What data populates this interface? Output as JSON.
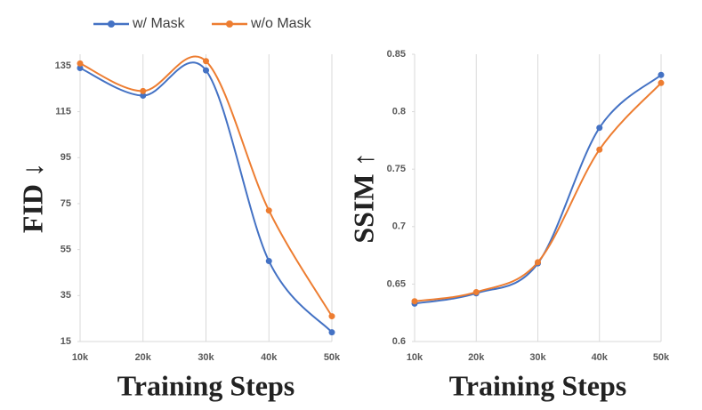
{
  "chart_data": [
    {
      "type": "line",
      "ylabel": "FID ↓",
      "xlabel": "Training Steps",
      "categories": [
        "10k",
        "20k",
        "30k",
        "40k",
        "50k"
      ],
      "ylim": [
        15,
        140
      ],
      "yticks": [
        15,
        35,
        55,
        75,
        95,
        115,
        135
      ],
      "grid": true,
      "series": [
        {
          "name": "w/ Mask",
          "color": "#4472c4",
          "values": [
            134,
            122,
            133,
            50,
            19
          ]
        },
        {
          "name": "w/o Mask",
          "color": "#ed7d31",
          "values": [
            136,
            124,
            137,
            72,
            26
          ]
        }
      ]
    },
    {
      "type": "line",
      "ylabel": "SSIM ↑",
      "xlabel": "Training Steps",
      "categories": [
        "10k",
        "20k",
        "30k",
        "40k",
        "50k"
      ],
      "ylim": [
        0.6,
        0.85
      ],
      "yticks": [
        0.6,
        0.65,
        0.7,
        0.75,
        0.8,
        0.85
      ],
      "grid": true,
      "series": [
        {
          "color": "#4472c4",
          "values": [
            0.633,
            0.642,
            0.668,
            0.786,
            0.832
          ]
        },
        {
          "color": "#ed7d31",
          "values": [
            0.635,
            0.643,
            0.669,
            0.767,
            0.825
          ]
        }
      ]
    }
  ]
}
